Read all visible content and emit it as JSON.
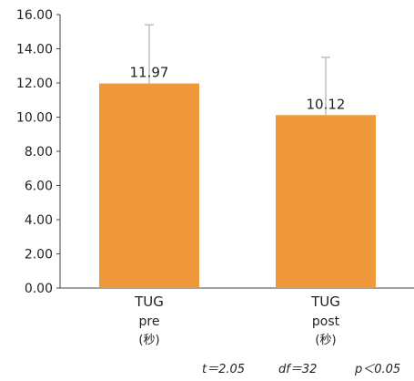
{
  "chart_data": {
    "type": "bar",
    "categories": [
      [
        "TUG",
        "pre",
        "(秒)"
      ],
      [
        "TUG",
        "post",
        "(秒)"
      ]
    ],
    "values": [
      11.97,
      10.12
    ],
    "data_labels": [
      "11.97",
      "10.12"
    ],
    "error_upper": [
      15.4,
      13.5
    ],
    "ylim": [
      0,
      16
    ],
    "yticks": [
      "0.00",
      "2.00",
      "4.00",
      "6.00",
      "8.00",
      "10.00",
      "12.00",
      "14.00",
      "16.00"
    ],
    "grid": false,
    "bar_color": "#F0993A",
    "error_color": "#BFBFBF",
    "stats": {
      "t": "t＝2.05",
      "df": "df＝32",
      "p": "p＜0.05"
    }
  }
}
